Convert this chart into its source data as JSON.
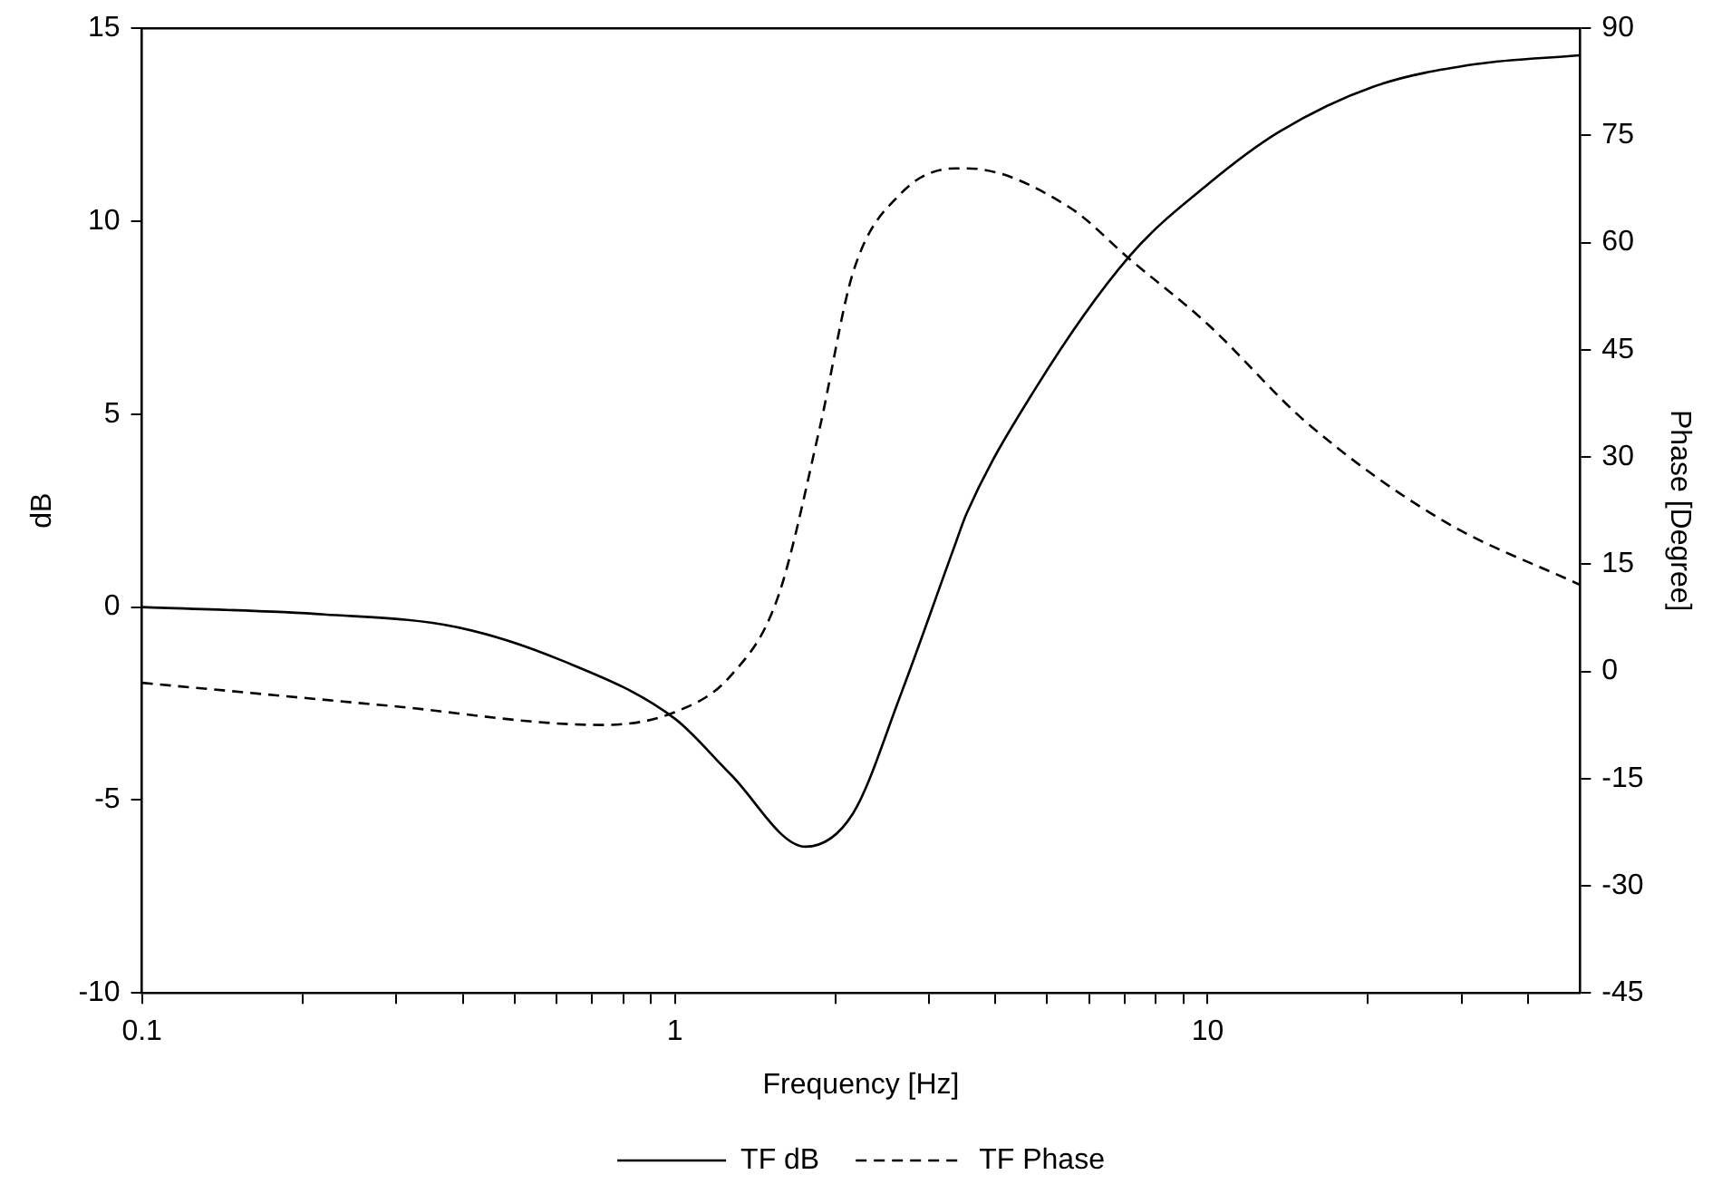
{
  "chart_data": {
    "type": "line",
    "xlabel": "Frequency [Hz]",
    "ylabel": "dB",
    "y2label": "Phase [Degree]",
    "log": "x",
    "grid": false,
    "legend": "bottom",
    "marker": "none",
    "xlim": [
      0.1,
      50
    ],
    "xticks": [
      0.1,
      {
        "value": 0.2,
        "label": null
      },
      {
        "value": 0.3,
        "label": null
      },
      {
        "value": 0.4,
        "label": null
      },
      {
        "value": 0.5,
        "label": null
      },
      {
        "value": 0.6,
        "label": null
      },
      {
        "value": 0.7,
        "label": null
      },
      {
        "value": 0.8,
        "label": null
      },
      {
        "value": 0.9,
        "label": null
      },
      1,
      {
        "value": 2,
        "label": null
      },
      {
        "value": 3,
        "label": null
      },
      {
        "value": 4,
        "label": null
      },
      {
        "value": 5,
        "label": null
      },
      {
        "value": 6,
        "label": null
      },
      {
        "value": 7,
        "label": null
      },
      {
        "value": 8,
        "label": null
      },
      {
        "value": 9,
        "label": null
      },
      10,
      {
        "value": 20,
        "label": null
      },
      {
        "value": 30,
        "label": null
      },
      {
        "value": 40,
        "label": null
      }
    ],
    "ylim": [
      -10,
      15
    ],
    "yticks": [
      -10,
      -5,
      0,
      5,
      10,
      15
    ],
    "y2lim": [
      -45,
      90
    ],
    "y2ticks": [
      -45,
      -30,
      -15,
      0,
      15,
      30,
      45,
      60,
      75,
      90
    ],
    "series": [
      {
        "name": "TF dB",
        "color": "#000000",
        "line_style": "solid",
        "x": [
          0.1,
          0.22,
          0.39,
          0.61,
          1,
          1.27,
          1.76,
          2.16,
          2.65,
          3.35,
          3.53,
          4.74,
          7.14,
          10,
          13.6,
          20.5,
          31.8,
          50
        ],
        "values": [
          0,
          -0.19,
          -0.52,
          -1.37,
          -2.89,
          -4.32,
          -6.21,
          -5.35,
          -2.3,
          1.58,
          2.43,
          5.64,
          9.1,
          10.95,
          12.31,
          13.49,
          14.07,
          14.3
        ]
      },
      {
        "name": "TF Phase",
        "color": "#000000",
        "line_style": "dashed",
        "axis": "y2",
        "x": [
          0.1,
          0.29,
          0.73,
          1,
          1.27,
          1.56,
          1.87,
          2.16,
          2.65,
          3.37,
          3.53,
          5.49,
          7.14,
          10,
          15.3,
          27.5,
          50
        ],
        "values": [
          -1.6,
          -4.8,
          -7.5,
          -5.7,
          -0.7,
          10.3,
          34,
          55.8,
          66.8,
          70.4,
          70.4,
          65,
          57.7,
          48.6,
          34.9,
          21.2,
          12.1
        ]
      }
    ]
  }
}
